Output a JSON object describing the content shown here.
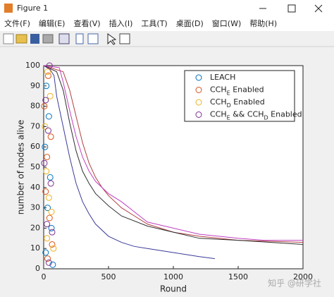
{
  "window": {
    "title": "Figure 1",
    "menu": [
      "文件(F)",
      "编辑(E)",
      "查看(V)",
      "插入(I)",
      "工具(T)",
      "桌面(D)",
      "窗口(W)",
      "帮助(H)"
    ]
  },
  "watermark": "知乎 @研学社",
  "chart_data": {
    "type": "line",
    "x_label": "Round",
    "y_label": "number of nodes alive",
    "xlim": [
      0,
      2000
    ],
    "xticks": [
      0,
      500,
      1000,
      1500,
      2000
    ],
    "ylim": [
      0,
      100
    ],
    "yticks": [
      0,
      10,
      20,
      30,
      40,
      50,
      60,
      70,
      80,
      90,
      100
    ],
    "legend": "upper right",
    "series": [
      {
        "name": "LEACH",
        "color": "#0072bd",
        "line_color": "#3a3a9a",
        "x": [
          0,
          50,
          80,
          100,
          150,
          200,
          250,
          300,
          350,
          400,
          500,
          600,
          700,
          800,
          1000,
          1100,
          1200,
          1320
        ],
        "values": [
          100,
          98,
          95,
          85,
          70,
          55,
          42,
          33,
          27,
          22,
          16,
          13,
          11,
          10,
          8,
          7,
          6,
          5
        ],
        "marker_x": [
          20,
          40,
          10,
          50,
          30,
          60,
          15,
          70
        ],
        "marker_y": [
          90,
          75,
          60,
          45,
          30,
          20,
          8,
          2
        ]
      },
      {
        "name": "CCH_E Enabled",
        "color": "#d95319",
        "line_color": "#b04040",
        "x": [
          0,
          150,
          200,
          250,
          300,
          350,
          400,
          450,
          500,
          600,
          700,
          800,
          1000,
          1200,
          1500,
          2000
        ],
        "values": [
          100,
          97,
          88,
          75,
          62,
          52,
          45,
          40,
          36,
          30,
          26,
          22,
          18,
          16,
          14,
          13
        ],
        "marker_x": [
          5,
          35,
          25,
          55,
          15,
          45,
          65,
          30
        ],
        "marker_y": [
          80,
          95,
          55,
          65,
          38,
          25,
          12,
          5
        ]
      },
      {
        "name": "CCH_D Enabled",
        "color": "#edb120",
        "line_color": "#303030",
        "x": [
          0,
          100,
          150,
          200,
          250,
          300,
          350,
          400,
          500,
          600,
          800,
          1000,
          1200,
          1500,
          2000
        ],
        "values": [
          100,
          97,
          88,
          72,
          58,
          48,
          42,
          37,
          31,
          26,
          21,
          18,
          15,
          14,
          12
        ],
        "marker_x": [
          30,
          10,
          50,
          20,
          40,
          60,
          25,
          75
        ],
        "marker_y": [
          97,
          70,
          85,
          48,
          35,
          28,
          15,
          10
        ]
      },
      {
        "name": "CCH_E && CCH_D Enabled",
        "color": "#7e2f8e",
        "line_color": "#c040c0",
        "x": [
          0,
          120,
          150,
          200,
          250,
          300,
          350,
          400,
          500,
          600,
          700,
          800,
          1000,
          1200,
          1500,
          1700,
          2000
        ],
        "values": [
          100,
          99,
          92,
          78,
          65,
          55,
          48,
          43,
          37,
          33,
          28,
          23,
          20,
          17,
          15,
          14,
          14
        ],
        "marker_x": [
          45,
          15,
          35,
          5,
          55,
          25,
          65,
          40
        ],
        "marker_y": [
          100,
          83,
          68,
          52,
          42,
          22,
          18,
          3
        ]
      }
    ]
  }
}
